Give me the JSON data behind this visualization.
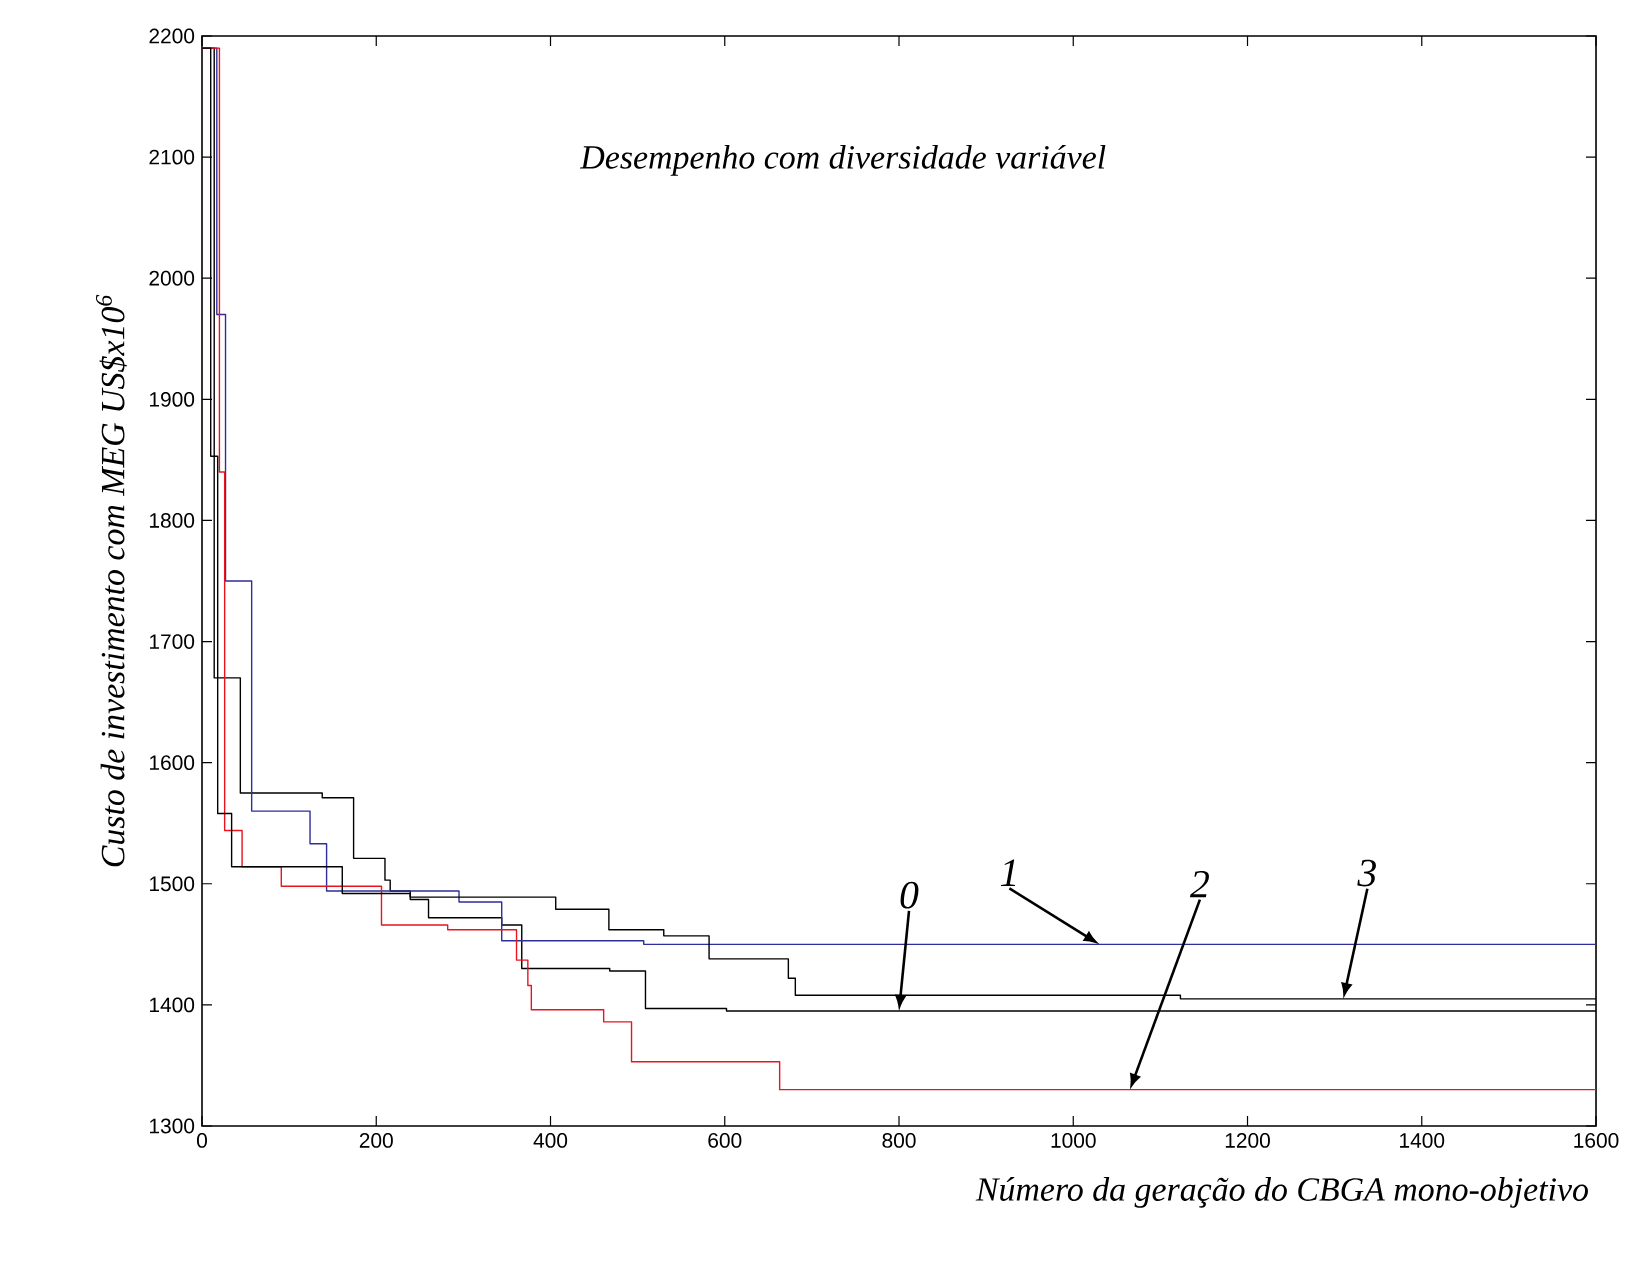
{
  "chart_data": {
    "type": "step",
    "title": "Desempenho com diversidade variável",
    "xlabel": "Número da geração do CBGA mono-objetivo",
    "ylabel": "Custo de investimento com MEG US$x10$^{6}$",
    "xlim": [
      0,
      1600
    ],
    "ylim": [
      1300,
      2200
    ],
    "xticks": [
      0,
      200,
      400,
      600,
      800,
      1000,
      1200,
      1400,
      1600
    ],
    "yticks": [
      1300,
      1400,
      1500,
      1600,
      1700,
      1800,
      1900,
      2000,
      2100,
      2200
    ],
    "grid": false,
    "marker": "none",
    "line_style": "solid",
    "series": [
      {
        "color": "#000000",
        "x": [
          0,
          14,
          44,
          138,
          174,
          210,
          216,
          239,
          260,
          344,
          367,
          468,
          509,
          602,
          1600
        ],
        "values": [
          2190,
          1670,
          1575,
          1571,
          1521,
          1503,
          1494,
          1487,
          1472,
          1466,
          1430,
          1428,
          1397,
          1395,
          1395
        ]
      },
      {
        "color": "#2e2e9c",
        "x": [
          0,
          17,
          27,
          57,
          124,
          143,
          295,
          344,
          507,
          1600
        ],
        "values": [
          2190,
          1970,
          1750,
          1560,
          1533,
          1494,
          1485,
          1453,
          1450,
          1450
        ]
      },
      {
        "color": "#e8141e",
        "x": [
          0,
          20,
          26,
          46,
          91,
          206,
          282,
          361,
          374,
          378,
          461,
          493,
          663,
          1600
        ],
        "values": [
          2190,
          1840,
          1544,
          1514,
          1498,
          1466,
          1462,
          1437,
          1416,
          1396,
          1386,
          1353,
          1330,
          1330
        ]
      },
      {
        "color": "#000000",
        "x": [
          0,
          10,
          18,
          34,
          161,
          239,
          406,
          467,
          530,
          582,
          673,
          681,
          1123,
          1600
        ],
        "values": [
          2190,
          1853,
          1558,
          1514,
          1492,
          1489,
          1479,
          1462,
          1457,
          1438,
          1422,
          1408,
          1405,
          1405
        ]
      }
    ],
    "annotations": [
      {
        "text": "0",
        "x": 800,
        "y": 1395
      },
      {
        "text": "1",
        "x": 1030,
        "y": 1450
      },
      {
        "text": "2",
        "x": 1065,
        "y": 1330
      },
      {
        "text": "3",
        "x": 1310,
        "y": 1405
      }
    ]
  }
}
